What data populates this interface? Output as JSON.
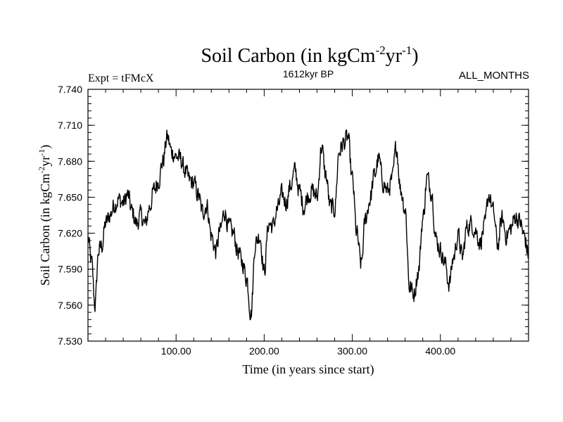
{
  "chart_data": {
    "type": "line",
    "title": {
      "main": "Soil Carbon (in kgCm",
      "sup1": "-2",
      "mid": "yr",
      "sup2": "-1",
      "end": ")"
    },
    "subtitle_left": "Expt = tFMcX",
    "subtitle_center": "1612kyr BP",
    "subtitle_right": "ALL_MONTHS",
    "xlabel": "Time (in years since start)",
    "ylabel": {
      "main": "Soil Carbon (in kgCm",
      "sup1": "-2",
      "mid": "yr",
      "sup2": "-1",
      "end": ")"
    },
    "xlim": [
      0,
      500
    ],
    "ylim": [
      7.53,
      7.74
    ],
    "xticks": [
      100,
      200,
      300,
      400
    ],
    "xtick_labels": [
      "100.00",
      "200.00",
      "300.00",
      "400.00"
    ],
    "yticks": [
      7.53,
      7.56,
      7.59,
      7.62,
      7.65,
      7.68,
      7.71,
      7.74
    ],
    "ytick_labels": [
      "7.530",
      "7.560",
      "7.590",
      "7.620",
      "7.650",
      "7.680",
      "7.710",
      "7.740"
    ],
    "series": [
      {
        "name": "Soil Carbon",
        "x": [
          0,
          4,
          8,
          12,
          16,
          20,
          25,
          30,
          35,
          40,
          45,
          50,
          55,
          60,
          65,
          70,
          75,
          80,
          85,
          90,
          95,
          100,
          105,
          110,
          115,
          120,
          125,
          130,
          135,
          140,
          145,
          150,
          155,
          160,
          165,
          170,
          175,
          180,
          185,
          190,
          195,
          200,
          205,
          210,
          215,
          220,
          225,
          230,
          235,
          240,
          245,
          250,
          255,
          260,
          265,
          270,
          275,
          280,
          285,
          290,
          295,
          300,
          305,
          310,
          315,
          320,
          325,
          330,
          335,
          340,
          345,
          350,
          355,
          360,
          365,
          370,
          375,
          380,
          385,
          390,
          395,
          400,
          405,
          410,
          415,
          420,
          425,
          430,
          435,
          440,
          445,
          450,
          455,
          460,
          465,
          470,
          475,
          480,
          485,
          490,
          495,
          500
        ],
        "values": [
          7.615,
          7.596,
          7.56,
          7.605,
          7.61,
          7.628,
          7.635,
          7.644,
          7.648,
          7.645,
          7.652,
          7.638,
          7.628,
          7.635,
          7.627,
          7.642,
          7.656,
          7.664,
          7.68,
          7.7,
          7.688,
          7.684,
          7.682,
          7.672,
          7.664,
          7.662,
          7.652,
          7.638,
          7.643,
          7.618,
          7.605,
          7.622,
          7.638,
          7.625,
          7.62,
          7.605,
          7.596,
          7.583,
          7.553,
          7.612,
          7.618,
          7.588,
          7.628,
          7.626,
          7.64,
          7.652,
          7.646,
          7.66,
          7.672,
          7.655,
          7.642,
          7.652,
          7.655,
          7.65,
          7.692,
          7.668,
          7.642,
          7.64,
          7.688,
          7.695,
          7.7,
          7.665,
          7.62,
          7.594,
          7.632,
          7.648,
          7.668,
          7.682,
          7.662,
          7.655,
          7.664,
          7.692,
          7.656,
          7.64,
          7.575,
          7.57,
          7.588,
          7.632,
          7.666,
          7.655,
          7.615,
          7.606,
          7.595,
          7.578,
          7.6,
          7.618,
          7.6,
          7.625,
          7.628,
          7.622,
          7.612,
          7.625,
          7.652,
          7.638,
          7.61,
          7.632,
          7.618,
          7.624,
          7.634,
          7.63,
          7.618,
          7.602
        ],
        "color": "#000000"
      }
    ]
  }
}
